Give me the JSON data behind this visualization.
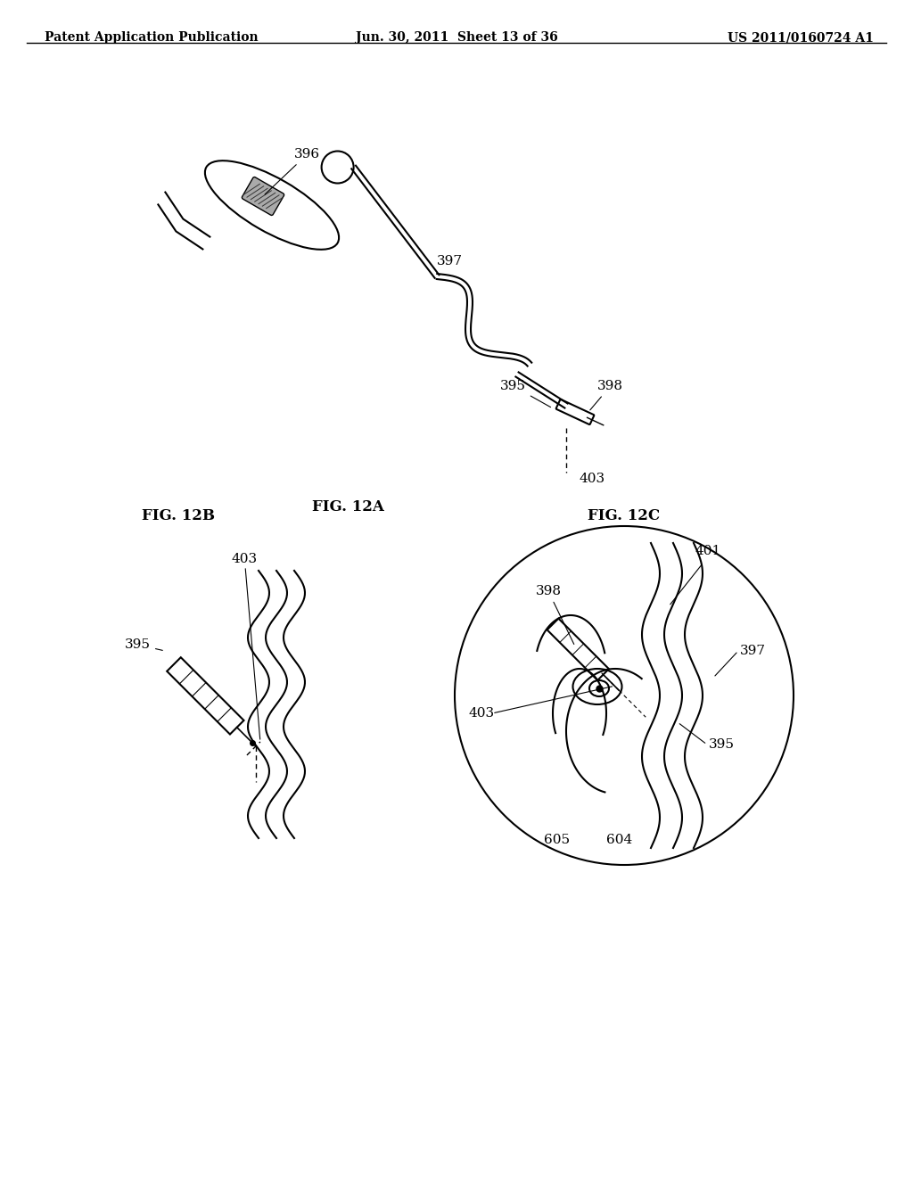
{
  "title_left": "Patent Application Publication",
  "title_mid": "Jun. 30, 2011  Sheet 13 of 36",
  "title_right": "US 2011/0160724 A1",
  "fig_labels": [
    "FIG. 12A",
    "FIG. 12B",
    "FIG. 12C"
  ],
  "bg_color": "#ffffff",
  "line_color": "#000000",
  "label_color": "#000000",
  "font_size_header": 10,
  "font_size_label": 11,
  "font_size_fig": 12
}
